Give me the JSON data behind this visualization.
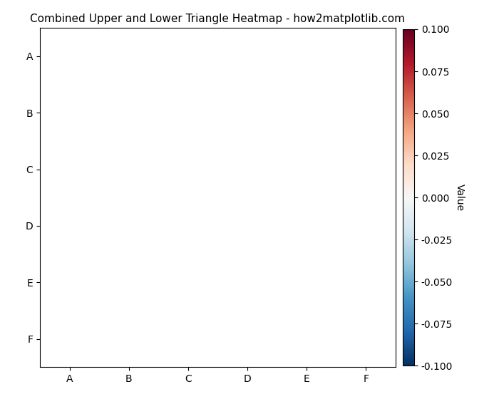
{
  "title": "Combined Upper and Lower Triangle Heatmap - how2matplotlib.com",
  "categories": [
    "A",
    "B",
    "C",
    "D",
    "E",
    "F"
  ],
  "n": 6,
  "vmin": -0.1,
  "vmax": 0.1,
  "cmap": "RdBu_r",
  "colorbar_label": "Value",
  "colorbar_ticks": [
    0.1,
    0.075,
    0.05,
    0.025,
    0.0,
    -0.025,
    -0.05,
    -0.075,
    -0.1
  ],
  "figsize": [
    7.0,
    5.6
  ],
  "dpi": 100,
  "title_fontsize": 11,
  "tick_fontsize": 10
}
